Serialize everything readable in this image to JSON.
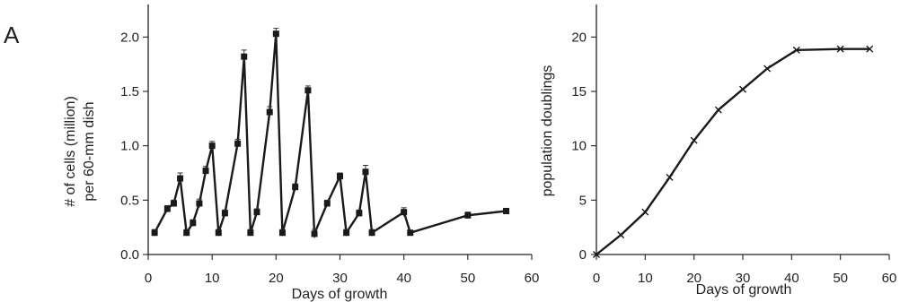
{
  "panel_label": "A",
  "chart_data": [
    {
      "type": "line",
      "title": "",
      "xlabel": "Days of growth",
      "ylabel_line1": "# of cells (million)",
      "ylabel_line2": "per 60-mm dish",
      "xlim": [
        0,
        60
      ],
      "ylim": [
        0,
        2.25
      ],
      "xticks": [
        0,
        10,
        20,
        30,
        40,
        50,
        60
      ],
      "xtick_labels": [
        "0",
        "10",
        "20",
        "30",
        "40",
        "50",
        "60"
      ],
      "yticks": [
        0.0,
        0.5,
        1.0,
        1.5,
        2.0
      ],
      "ytick_labels": [
        "0.0",
        "0.5",
        "1.0",
        "1.5",
        "2.0"
      ],
      "marker": "square",
      "error_bars": true,
      "grid": false,
      "series": [
        {
          "x": [
            1,
            3,
            4,
            5,
            6,
            7,
            8,
            9,
            10,
            11,
            12,
            14,
            15,
            16,
            17,
            19,
            20,
            21,
            23,
            25,
            26,
            28,
            30,
            31,
            33,
            34,
            35,
            40,
            41,
            50,
            56
          ],
          "y": [
            0.2,
            0.42,
            0.47,
            0.7,
            0.2,
            0.29,
            0.47,
            0.77,
            1.0,
            0.2,
            0.38,
            1.02,
            1.82,
            0.2,
            0.39,
            1.31,
            2.03,
            0.2,
            0.62,
            1.51,
            0.19,
            0.47,
            0.72,
            0.2,
            0.38,
            0.76,
            0.2,
            0.39,
            0.2,
            0.36,
            0.4
          ],
          "err": [
            0.03,
            0.03,
            0.03,
            0.05,
            0.03,
            0.03,
            0.04,
            0.04,
            0.04,
            0.03,
            0.03,
            0.04,
            0.06,
            0.03,
            0.03,
            0.05,
            0.05,
            0.03,
            0.03,
            0.04,
            0.04,
            0.03,
            0.03,
            0.03,
            0.03,
            0.06,
            0.03,
            0.04,
            0.02,
            0.03,
            0.02
          ]
        }
      ]
    },
    {
      "type": "line",
      "title": "",
      "xlabel": "Days of growth",
      "ylabel": "population doublings",
      "xlim": [
        0,
        60
      ],
      "ylim": [
        0,
        22.5
      ],
      "xticks": [
        0,
        10,
        20,
        30,
        40,
        50,
        60
      ],
      "xtick_labels": [
        "0",
        "10",
        "20",
        "30",
        "40",
        "50",
        "60"
      ],
      "yticks": [
        0,
        5,
        10,
        15,
        20
      ],
      "ytick_labels": [
        "0",
        "5",
        "10",
        "15",
        "20"
      ],
      "marker": "x",
      "grid": false,
      "series": [
        {
          "x": [
            0,
            5,
            10,
            15,
            20,
            25,
            30,
            35,
            41,
            50,
            56
          ],
          "y": [
            0,
            1.8,
            3.9,
            7.1,
            10.5,
            13.3,
            15.2,
            17.1,
            18.8,
            18.9,
            18.9
          ]
        }
      ]
    }
  ]
}
